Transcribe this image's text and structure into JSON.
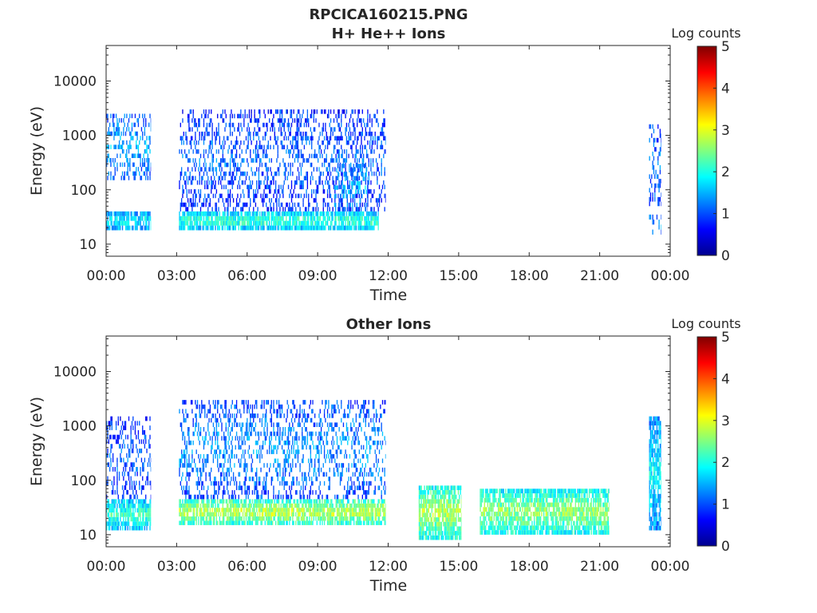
{
  "figure": {
    "title_line1": "RPCICA160215.PNG",
    "title_line2": "H+ He++ Ions",
    "title_bottom": "Other Ions"
  },
  "colorbar": {
    "label": "Log counts",
    "range": [
      0,
      5
    ],
    "ticks": [
      "0",
      "1",
      "2",
      "3",
      "4",
      "5"
    ],
    "colormap": "jet"
  },
  "chart_data": [
    {
      "type": "heatmap",
      "title": "H+ He++ Ions",
      "xlabel": "Time",
      "ylabel": "Energy (eV)",
      "yscale": "log",
      "ylim": [
        6,
        45000
      ],
      "xlim": [
        "00:00",
        "24:00"
      ],
      "x_ticks": [
        "00:00",
        "03:00",
        "06:00",
        "09:00",
        "12:00",
        "15:00",
        "18:00",
        "21:00",
        "00:00"
      ],
      "y_ticks": [
        "10",
        "100",
        "1000",
        "10000"
      ],
      "clim": [
        0,
        5
      ],
      "regions": [
        {
          "t_start": 0.0,
          "t_end": 1.9,
          "e_low": 18,
          "e_high": 40,
          "level": 1.6
        },
        {
          "t_start": 0.0,
          "t_end": 1.9,
          "e_low": 150,
          "e_high": 2500,
          "level": 1.3
        },
        {
          "t_start": 3.1,
          "t_end": 11.6,
          "e_low": 18,
          "e_high": 40,
          "level": 1.9
        },
        {
          "t_start": 3.1,
          "t_end": 11.9,
          "e_low": 40,
          "e_high": 3000,
          "level": 1.0
        },
        {
          "t_start": 9.7,
          "t_end": 11.1,
          "e_low": 40,
          "e_high": 300,
          "level": 1.4
        },
        {
          "t_start": 23.1,
          "t_end": 23.6,
          "e_low": 15,
          "e_high": 35,
          "level": 1.2
        },
        {
          "t_start": 23.1,
          "t_end": 23.6,
          "e_low": 50,
          "e_high": 1600,
          "level": 1.1
        }
      ]
    },
    {
      "type": "heatmap",
      "title": "Other Ions",
      "xlabel": "Time",
      "ylabel": "Energy (eV)",
      "yscale": "log",
      "ylim": [
        6,
        45000
      ],
      "xlim": [
        "00:00",
        "24:00"
      ],
      "x_ticks": [
        "00:00",
        "03:00",
        "06:00",
        "09:00",
        "12:00",
        "15:00",
        "18:00",
        "21:00",
        "00:00"
      ],
      "y_ticks": [
        "10",
        "100",
        "1000",
        "10000"
      ],
      "clim": [
        0,
        5
      ],
      "regions": [
        {
          "t_start": 0.0,
          "t_end": 1.9,
          "e_low": 12,
          "e_high": 45,
          "level": 1.9
        },
        {
          "t_start": 0.0,
          "t_end": 1.9,
          "e_low": 45,
          "e_high": 1500,
          "level": 1.0
        },
        {
          "t_start": 3.1,
          "t_end": 11.9,
          "e_low": 15,
          "e_high": 45,
          "level": 2.5
        },
        {
          "t_start": 3.1,
          "t_end": 11.9,
          "e_low": 45,
          "e_high": 3000,
          "level": 1.2
        },
        {
          "t_start": 13.3,
          "t_end": 15.1,
          "e_low": 8,
          "e_high": 80,
          "level": 2.4
        },
        {
          "t_start": 15.9,
          "t_end": 21.4,
          "e_low": 10,
          "e_high": 70,
          "level": 2.3
        },
        {
          "t_start": 23.1,
          "t_end": 23.6,
          "e_low": 12,
          "e_high": 1500,
          "level": 1.6
        }
      ]
    }
  ]
}
